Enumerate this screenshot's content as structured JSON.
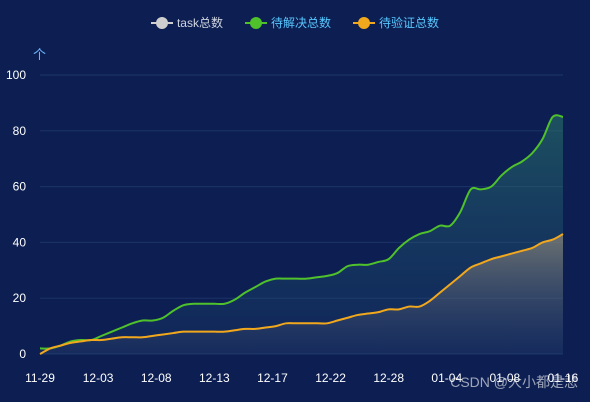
{
  "chart_data": {
    "type": "area",
    "legend": [
      {
        "name": "task总数",
        "color": "#cfcfcf",
        "text_color": "#d0d4e0"
      },
      {
        "name": "待解决总数",
        "color": "#4fc12b",
        "text_color": "#57c7ff"
      },
      {
        "name": "待验证总数",
        "color": "#f2a81d",
        "text_color": "#57c7ff"
      }
    ],
    "y_axis_name": "个",
    "ylim": [
      0,
      100
    ],
    "y_ticks": [
      0,
      20,
      40,
      60,
      80,
      100
    ],
    "x_ticks": [
      "11-29",
      "12-03",
      "12-08",
      "12-13",
      "12-17",
      "12-22",
      "12-28",
      "01-04",
      "01-08",
      "01-16"
    ],
    "x_range": [
      0,
      47
    ],
    "series": [
      {
        "name": "待解决总数",
        "color": "#4fc12b",
        "values": [
          2,
          2,
          3,
          4.5,
          5,
          5,
          6.5,
          8,
          9.5,
          11,
          12,
          12,
          13,
          15.5,
          17.5,
          18,
          18,
          18,
          18,
          19.5,
          22,
          24,
          26,
          27,
          27,
          27,
          27,
          27.5,
          28,
          29,
          31.5,
          32,
          32,
          33,
          34,
          38,
          41,
          43,
          44,
          46,
          46,
          51,
          59,
          59,
          60,
          64,
          67,
          69,
          72,
          77,
          85,
          85
        ]
      },
      {
        "name": "待验证总数",
        "color": "#f2a81d",
        "values": [
          0,
          2,
          3,
          4,
          4.5,
          5,
          5,
          5.5,
          6,
          6,
          6,
          6.5,
          7,
          7.5,
          8,
          8,
          8,
          8,
          8,
          8.5,
          9,
          9,
          9.5,
          10,
          11,
          11,
          11,
          11,
          11,
          12,
          13,
          14,
          14.5,
          15,
          16,
          16,
          17,
          17,
          19,
          22,
          25,
          28,
          31,
          32.5,
          34,
          35,
          36,
          37,
          38,
          40,
          41,
          43
        ]
      }
    ]
  },
  "watermark": "CSDN @大小都是悲"
}
